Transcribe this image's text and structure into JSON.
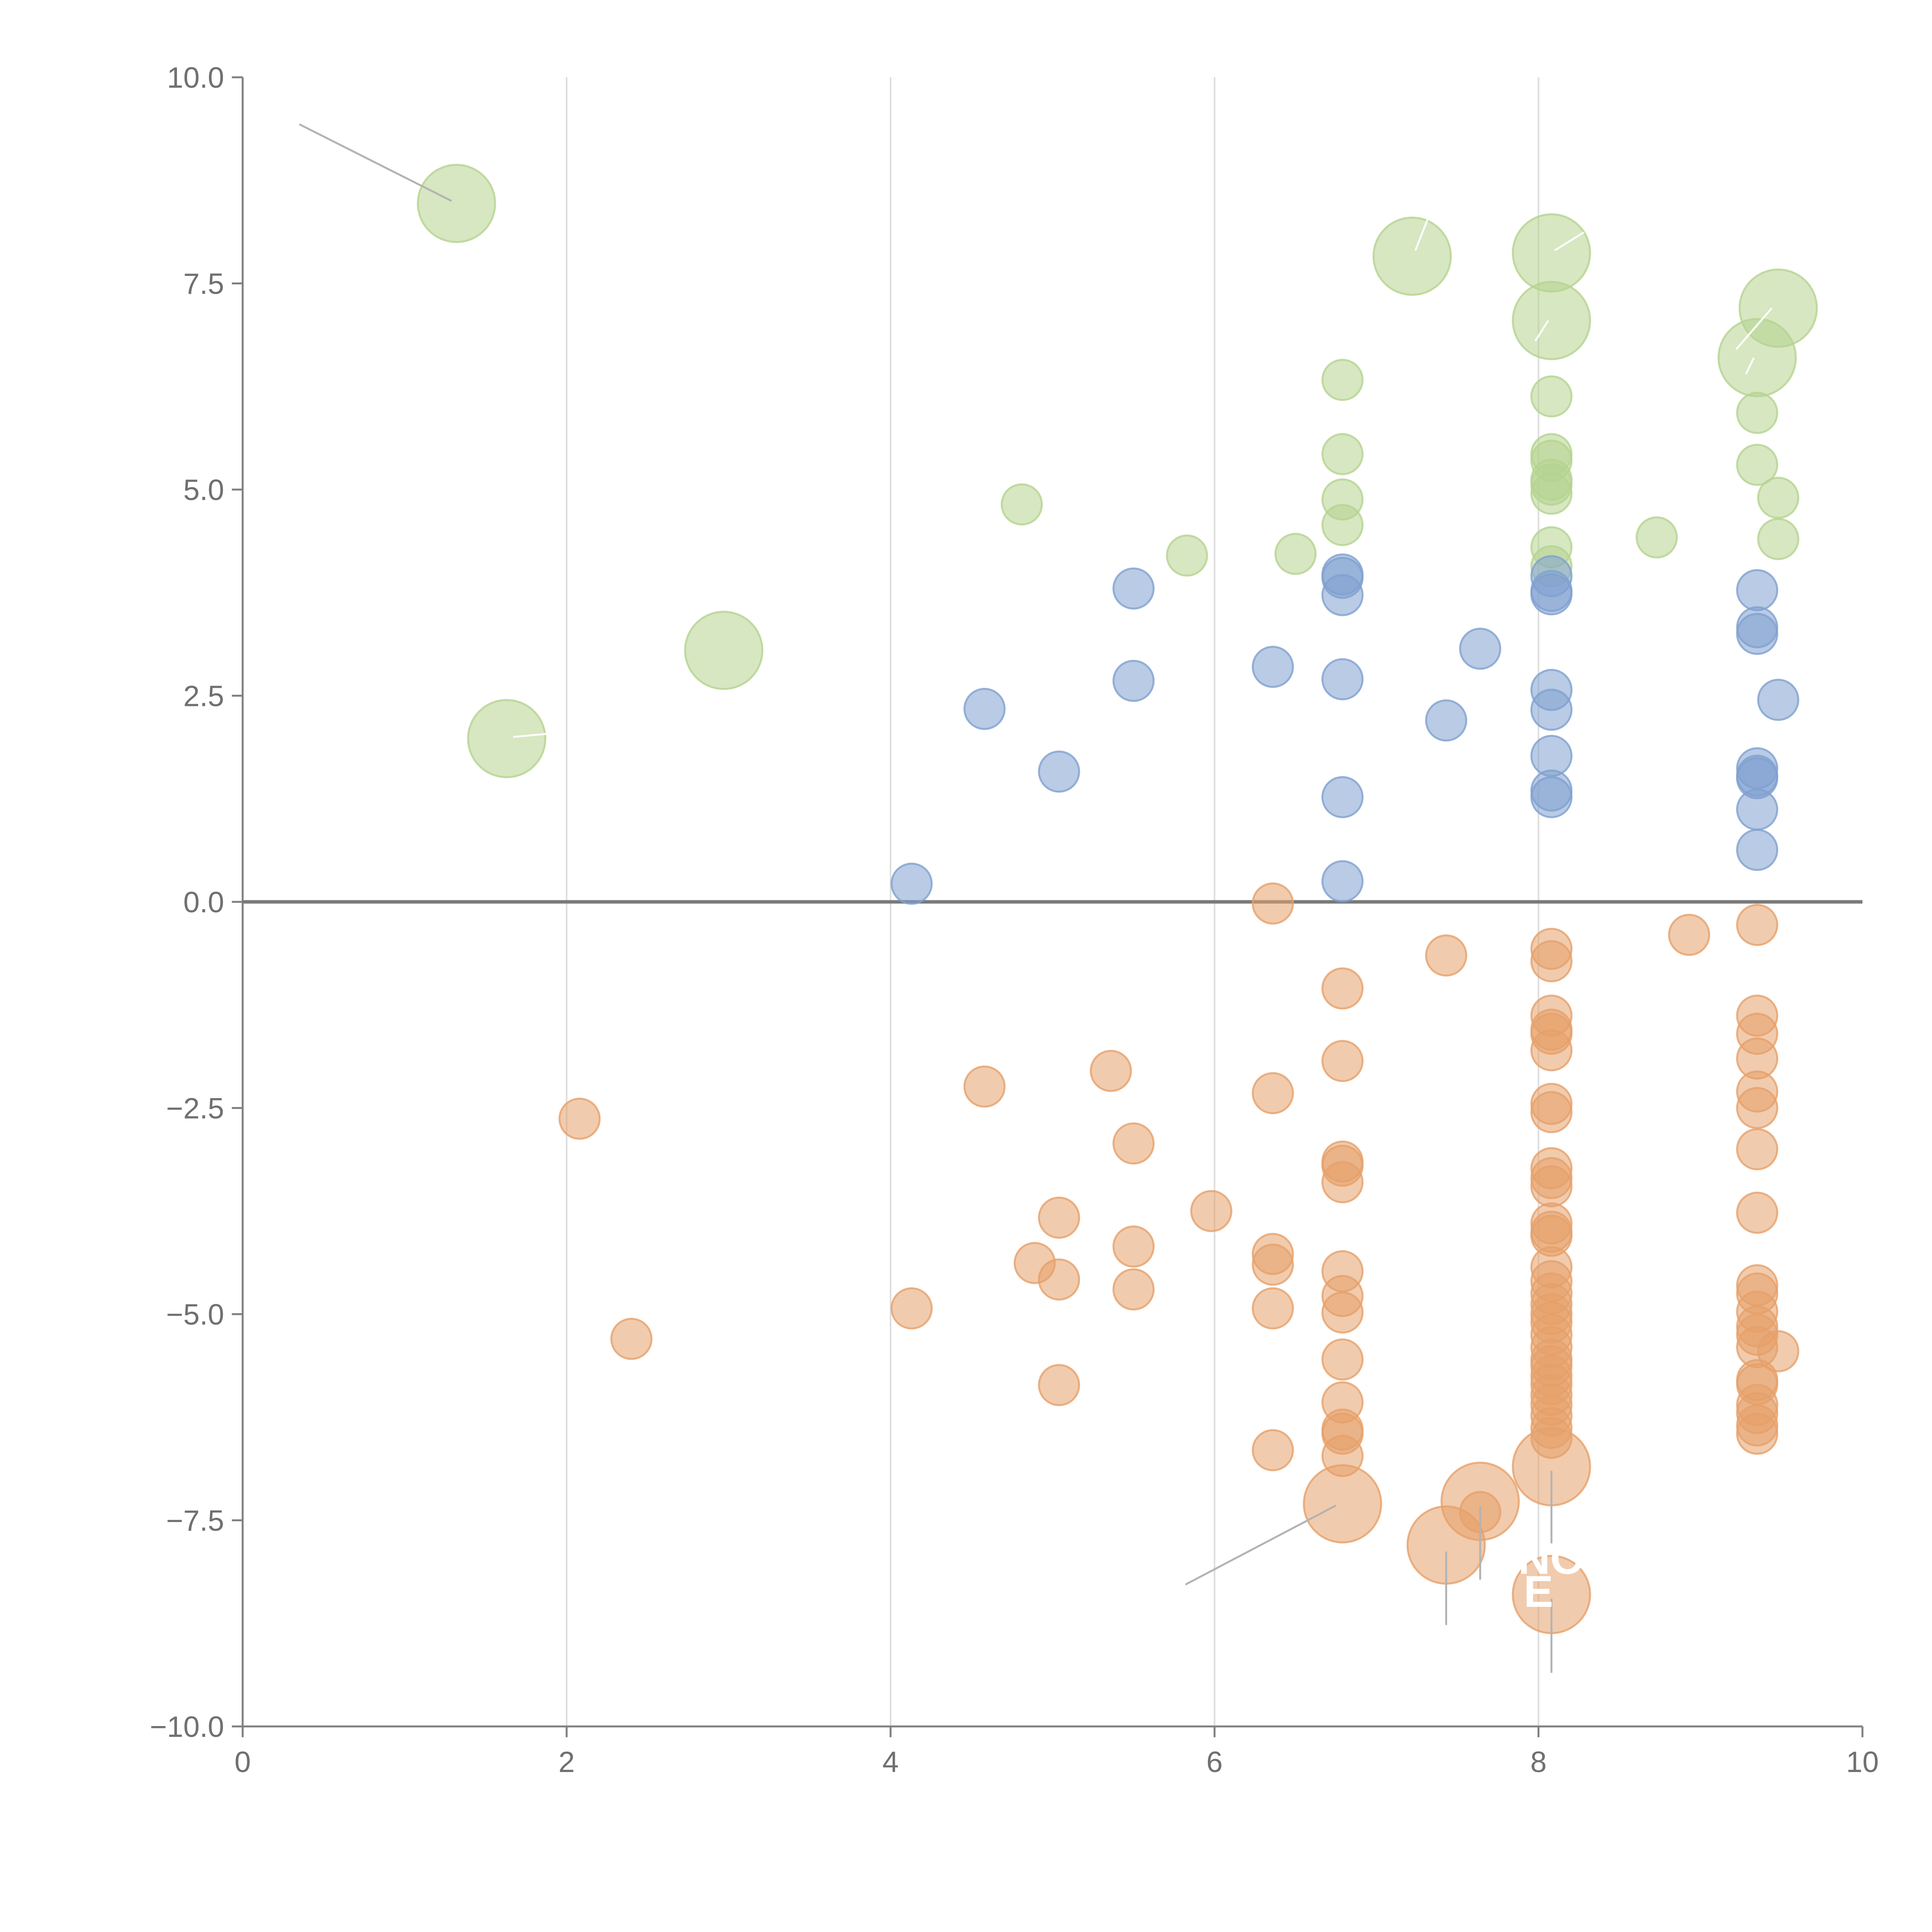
{
  "chart_data": {
    "type": "scatter",
    "title": "",
    "xlabel": "",
    "ylabel": "",
    "xlim": [
      0,
      10
    ],
    "ylim": [
      -10,
      10
    ],
    "x_ticks": [
      "0",
      "2",
      "4",
      "6",
      "8",
      "10"
    ],
    "y_ticks": [
      "−10.0",
      "−7.5",
      "−5.0",
      "−2.5",
      "0.0",
      "2.5",
      "5.0",
      "7.5",
      "10.0"
    ],
    "grid": "vertical",
    "zero_line": true,
    "colors": {
      "green": "#b5d38f",
      "blue": "#7fa0cf",
      "orange": "#e6a06a"
    },
    "series": [
      {
        "name": "green",
        "color": "#b5d38f",
        "points": [
          {
            "x": 1.32,
            "y": 8.47,
            "s": "lg"
          },
          {
            "x": 1.63,
            "y": 1.98,
            "s": "lg"
          },
          {
            "x": 2.97,
            "y": 3.05,
            "s": "lg"
          },
          {
            "x": 7.22,
            "y": 7.83,
            "s": "lg"
          },
          {
            "x": 8.08,
            "y": 7.87,
            "s": "lg"
          },
          {
            "x": 8.08,
            "y": 7.05,
            "s": "lg"
          },
          {
            "x": 9.48,
            "y": 7.2,
            "s": "lg"
          },
          {
            "x": 9.35,
            "y": 6.6,
            "s": "lg"
          },
          {
            "x": 4.81,
            "y": 4.82
          },
          {
            "x": 5.83,
            "y": 4.2
          },
          {
            "x": 6.5,
            "y": 4.22
          },
          {
            "x": 6.79,
            "y": 6.33
          },
          {
            "x": 6.79,
            "y": 5.43
          },
          {
            "x": 6.79,
            "y": 4.88
          },
          {
            "x": 6.79,
            "y": 4.57
          },
          {
            "x": 8.08,
            "y": 6.13
          },
          {
            "x": 8.08,
            "y": 5.43
          },
          {
            "x": 8.08,
            "y": 5.35
          },
          {
            "x": 8.08,
            "y": 5.12
          },
          {
            "x": 8.08,
            "y": 5.06
          },
          {
            "x": 8.08,
            "y": 4.95
          },
          {
            "x": 8.08,
            "y": 4.3
          },
          {
            "x": 8.08,
            "y": 4.07
          },
          {
            "x": 8.73,
            "y": 4.42
          },
          {
            "x": 9.35,
            "y": 5.93
          },
          {
            "x": 9.35,
            "y": 5.3
          },
          {
            "x": 9.48,
            "y": 4.9
          },
          {
            "x": 9.48,
            "y": 4.4
          }
        ]
      },
      {
        "name": "blue",
        "color": "#7fa0cf",
        "points": [
          {
            "x": 4.13,
            "y": 0.22
          },
          {
            "x": 4.58,
            "y": 2.34
          },
          {
            "x": 5.04,
            "y": 1.58
          },
          {
            "x": 5.5,
            "y": 3.8
          },
          {
            "x": 5.5,
            "y": 2.68
          },
          {
            "x": 6.36,
            "y": 2.85
          },
          {
            "x": 6.79,
            "y": 3.97
          },
          {
            "x": 6.79,
            "y": 3.93
          },
          {
            "x": 6.79,
            "y": 3.72
          },
          {
            "x": 6.79,
            "y": 2.7
          },
          {
            "x": 6.79,
            "y": 1.27
          },
          {
            "x": 6.79,
            "y": 0.25
          },
          {
            "x": 7.43,
            "y": 2.2
          },
          {
            "x": 7.64,
            "y": 3.07
          },
          {
            "x": 8.08,
            "y": 3.95
          },
          {
            "x": 8.08,
            "y": 3.77
          },
          {
            "x": 8.08,
            "y": 3.73
          },
          {
            "x": 8.08,
            "y": 2.57
          },
          {
            "x": 8.08,
            "y": 2.33
          },
          {
            "x": 8.08,
            "y": 1.77
          },
          {
            "x": 8.08,
            "y": 1.35
          },
          {
            "x": 8.08,
            "y": 1.27
          },
          {
            "x": 9.35,
            "y": 3.78
          },
          {
            "x": 9.35,
            "y": 3.33
          },
          {
            "x": 9.35,
            "y": 3.25
          },
          {
            "x": 9.35,
            "y": 1.62
          },
          {
            "x": 9.35,
            "y": 1.53
          },
          {
            "x": 9.35,
            "y": 1.5
          },
          {
            "x": 9.35,
            "y": 1.12
          },
          {
            "x": 9.35,
            "y": 0.63
          },
          {
            "x": 9.48,
            "y": 2.45
          }
        ]
      },
      {
        "name": "orange",
        "color": "#e6a06a",
        "points": [
          {
            "x": 6.79,
            "y": -7.3,
            "s": "lg"
          },
          {
            "x": 7.43,
            "y": -7.8,
            "s": "lg"
          },
          {
            "x": 7.64,
            "y": -7.27,
            "s": "lg"
          },
          {
            "x": 8.08,
            "y": -6.85,
            "s": "lg"
          },
          {
            "x": 8.08,
            "y": -8.4,
            "s": "lg"
          },
          {
            "x": 2.08,
            "y": -2.63
          },
          {
            "x": 2.4,
            "y": -5.3
          },
          {
            "x": 4.13,
            "y": -4.93
          },
          {
            "x": 4.58,
            "y": -2.24
          },
          {
            "x": 4.89,
            "y": -4.38
          },
          {
            "x": 5.04,
            "y": -3.83
          },
          {
            "x": 5.04,
            "y": -4.58
          },
          {
            "x": 5.04,
            "y": -5.86
          },
          {
            "x": 5.36,
            "y": -2.05
          },
          {
            "x": 5.5,
            "y": -2.93
          },
          {
            "x": 5.5,
            "y": -4.18
          },
          {
            "x": 5.5,
            "y": -4.7
          },
          {
            "x": 5.98,
            "y": -3.75
          },
          {
            "x": 6.36,
            "y": -0.02
          },
          {
            "x": 6.36,
            "y": -2.32
          },
          {
            "x": 6.36,
            "y": -4.27
          },
          {
            "x": 6.36,
            "y": -4.4
          },
          {
            "x": 6.36,
            "y": -4.93
          },
          {
            "x": 6.36,
            "y": -6.65
          },
          {
            "x": 6.79,
            "y": -1.05
          },
          {
            "x": 6.79,
            "y": -1.93
          },
          {
            "x": 6.79,
            "y": -3.15
          },
          {
            "x": 6.79,
            "y": -3.2
          },
          {
            "x": 6.79,
            "y": -3.4
          },
          {
            "x": 6.79,
            "y": -4.48
          },
          {
            "x": 6.79,
            "y": -4.78
          },
          {
            "x": 6.79,
            "y": -4.98
          },
          {
            "x": 6.79,
            "y": -5.55
          },
          {
            "x": 6.79,
            "y": -6.07
          },
          {
            "x": 6.79,
            "y": -6.4
          },
          {
            "x": 6.79,
            "y": -6.45
          },
          {
            "x": 6.79,
            "y": -6.72
          },
          {
            "x": 7.43,
            "y": -0.65
          },
          {
            "x": 7.64,
            "y": -7.4
          },
          {
            "x": 8.08,
            "y": -0.57
          },
          {
            "x": 8.08,
            "y": -0.72
          },
          {
            "x": 8.08,
            "y": -1.38
          },
          {
            "x": 8.08,
            "y": -1.55
          },
          {
            "x": 8.08,
            "y": -1.6
          },
          {
            "x": 8.08,
            "y": -1.8
          },
          {
            "x": 8.08,
            "y": -2.45
          },
          {
            "x": 8.08,
            "y": -2.55
          },
          {
            "x": 8.08,
            "y": -3.23
          },
          {
            "x": 8.08,
            "y": -3.35
          },
          {
            "x": 8.08,
            "y": -3.45
          },
          {
            "x": 8.08,
            "y": -3.9
          },
          {
            "x": 8.08,
            "y": -4.0
          },
          {
            "x": 8.08,
            "y": -4.05
          },
          {
            "x": 8.08,
            "y": -4.43
          },
          {
            "x": 8.08,
            "y": -4.6
          },
          {
            "x": 8.08,
            "y": -4.75
          },
          {
            "x": 8.08,
            "y": -4.88
          },
          {
            "x": 8.08,
            "y": -5.0
          },
          {
            "x": 8.08,
            "y": -5.1
          },
          {
            "x": 8.08,
            "y": -5.25
          },
          {
            "x": 8.08,
            "y": -5.4
          },
          {
            "x": 8.08,
            "y": -5.55
          },
          {
            "x": 8.08,
            "y": -5.63
          },
          {
            "x": 8.08,
            "y": -5.75
          },
          {
            "x": 8.08,
            "y": -5.85
          },
          {
            "x": 8.08,
            "y": -5.98
          },
          {
            "x": 8.08,
            "y": -6.1
          },
          {
            "x": 8.08,
            "y": -6.23
          },
          {
            "x": 8.08,
            "y": -6.38
          },
          {
            "x": 8.08,
            "y": -6.5
          },
          {
            "x": 8.93,
            "y": -0.4
          },
          {
            "x": 9.35,
            "y": -0.28
          },
          {
            "x": 9.35,
            "y": -1.38
          },
          {
            "x": 9.35,
            "y": -1.6
          },
          {
            "x": 9.35,
            "y": -1.9
          },
          {
            "x": 9.35,
            "y": -2.3
          },
          {
            "x": 9.35,
            "y": -2.5
          },
          {
            "x": 9.35,
            "y": -3.0
          },
          {
            "x": 9.35,
            "y": -3.77
          },
          {
            "x": 9.35,
            "y": -4.65
          },
          {
            "x": 9.35,
            "y": -4.75
          },
          {
            "x": 9.35,
            "y": -4.97
          },
          {
            "x": 9.35,
            "y": -5.15
          },
          {
            "x": 9.35,
            "y": -5.25
          },
          {
            "x": 9.35,
            "y": -5.4
          },
          {
            "x": 9.35,
            "y": -5.8
          },
          {
            "x": 9.35,
            "y": -5.85
          },
          {
            "x": 9.35,
            "y": -6.1
          },
          {
            "x": 9.35,
            "y": -6.2
          },
          {
            "x": 9.35,
            "y": -6.35
          },
          {
            "x": 9.35,
            "y": -6.45
          },
          {
            "x": 9.48,
            "y": -5.45
          }
        ]
      }
    ],
    "leaders": [
      {
        "color": "gray",
        "x1": 0.35,
        "y1": 9.43,
        "x2": 1.29,
        "y2": 8.5
      },
      {
        "color": "gray",
        "x1": 5.82,
        "y1": -8.28,
        "x2": 6.75,
        "y2": -7.32
      },
      {
        "color": "gray",
        "x1": 7.43,
        "y1": -7.88,
        "x2": 7.43,
        "y2": -8.77
      },
      {
        "color": "gray",
        "x1": 7.64,
        "y1": -7.33,
        "x2": 7.64,
        "y2": -8.22
      },
      {
        "color": "gray",
        "x1": 8.08,
        "y1": -6.9,
        "x2": 8.08,
        "y2": -7.78
      },
      {
        "color": "gray",
        "x1": 8.08,
        "y1": -8.45,
        "x2": 8.08,
        "y2": -9.35
      },
      {
        "color": "white",
        "x1": 1.67,
        "y1": 2.0,
        "x2": 1.95,
        "y2": 2.05
      },
      {
        "color": "white",
        "x1": 7.24,
        "y1": 7.9,
        "x2": 7.32,
        "y2": 8.3
      },
      {
        "color": "white",
        "x1": 8.1,
        "y1": 7.9,
        "x2": 8.28,
        "y2": 8.12
      },
      {
        "color": "white",
        "x1": 8.06,
        "y1": 7.05,
        "x2": 7.98,
        "y2": 6.8
      },
      {
        "color": "white",
        "x1": 9.44,
        "y1": 7.2,
        "x2": 9.22,
        "y2": 6.7
      },
      {
        "color": "white",
        "x1": 9.33,
        "y1": 6.6,
        "x2": 9.28,
        "y2": 6.4
      }
    ],
    "annotations": [
      {
        "text": "NO",
        "x": 8.08,
        "y": -8.15
      },
      {
        "text": "E",
        "x": 8.0,
        "y": -8.55
      }
    ]
  }
}
